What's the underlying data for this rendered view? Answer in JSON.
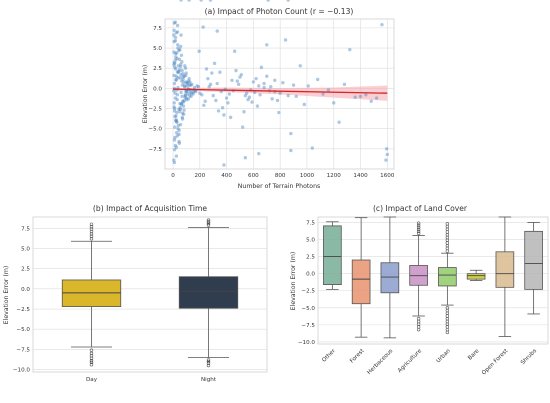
{
  "figure": {
    "scatter_panel": {
      "title": "(a) Impact of Photon Count (r = −0.13)",
      "xlabel": "Number of Terrain Photons",
      "ylabel": "Elevation Error (m)"
    },
    "time_panel": {
      "title": "(b) Impact of Acquisition Time",
      "ylabel": "Elevation Error (m)"
    },
    "landcover_panel": {
      "title": "(c) Impact of Land Cover",
      "ylabel": "Elevation Error (m)"
    }
  },
  "chart_data": [
    {
      "type": "scatter",
      "title": "(a) Impact of Photon Count (r = −0.13)",
      "xlabel": "Number of Terrain Photons",
      "ylabel": "Elevation Error (m)",
      "xlim": [
        -60,
        1650
      ],
      "ylim": [
        -10.0,
        8.6
      ],
      "xticks": [
        0,
        200,
        400,
        600,
        800,
        1000,
        1200,
        1400,
        1600
      ],
      "yticks": [
        -7.5,
        -5.0,
        -2.5,
        0.0,
        2.5,
        5.0,
        7.5
      ],
      "point_color": "#4a86c0",
      "points_x": [
        6,
        11,
        18,
        25,
        33,
        42,
        55,
        70,
        85,
        9,
        15,
        22,
        30,
        40,
        52,
        65,
        78,
        95,
        110,
        7,
        13,
        20,
        28,
        37,
        48,
        60,
        74,
        90,
        105,
        125,
        8,
        14,
        21,
        29,
        38,
        50,
        63,
        77,
        93,
        8,
        12,
        19,
        27,
        36,
        47,
        58,
        71,
        88,
        102,
        120,
        6,
        10,
        17,
        24,
        32,
        44,
        56,
        68,
        82,
        98,
        115,
        140,
        10,
        16,
        23,
        31,
        41,
        53,
        66,
        80,
        97,
        118,
        135,
        7,
        12,
        19,
        26,
        35,
        46,
        59,
        72,
        87,
        100,
        122,
        150,
        9,
        14,
        22,
        30,
        39,
        51,
        64,
        76,
        92,
        108,
        130,
        160,
        6,
        11,
        18,
        25,
        34,
        45,
        57,
        69,
        83,
        99,
        116,
        138,
        170,
        8,
        13,
        20,
        28,
        37,
        49,
        61,
        75,
        91,
        106,
        127,
        155,
        190,
        7,
        12,
        18,
        24,
        33,
        43,
        54,
        67,
        81,
        96,
        112,
        133,
        165,
        200,
        10,
        17,
        25,
        34,
        45,
        57,
        72,
        88,
        104,
        126,
        150,
        180,
        215,
        240,
        260,
        230,
        280,
        300,
        250,
        320,
        270,
        340,
        290,
        360,
        310,
        380,
        330,
        400,
        350,
        420,
        370,
        440,
        390,
        460,
        410,
        480,
        430,
        500,
        450,
        520,
        470,
        540,
        490,
        560,
        510,
        580,
        530,
        600,
        550,
        620,
        570,
        640,
        590,
        660,
        610,
        680,
        630,
        700,
        650,
        720,
        680,
        740,
        700,
        760,
        730,
        780,
        760,
        800,
        790,
        820,
        840,
        860,
        880,
        900,
        920,
        950,
        980,
        1010,
        1040,
        1080,
        1120,
        1160,
        1200,
        1240,
        1280,
        1320,
        1360,
        1400,
        1440,
        1480,
        1520,
        1560,
        1590,
        1600,
        1595,
        225,
        60,
        195,
        330,
        380,
        540,
        640,
        880,
        860,
        710,
        60,
        120,
        210,
        280
      ],
      "points_y": [
        -0.3,
        0.6,
        -1.2,
        1.5,
        -0.8,
        2.1,
        -2.6,
        0.4,
        -1.5,
        3.2,
        -3.5,
        1.1,
        -0.2,
        2.8,
        -1.9,
        0.9,
        -2.2,
        1.6,
        -0.7,
        4.5,
        -4.8,
        2.4,
        -3.0,
        0.1,
        3.6,
        -0.5,
        1.8,
        -1.1,
        0.7,
        -0.9,
        5.8,
        -6.1,
        3.9,
        -4.2,
        1.3,
        -2.9,
        4.1,
        -1.7,
        2.5,
        7.2,
        -7.6,
        6.3,
        -5.5,
        5.0,
        -6.8,
        3.0,
        -3.8,
        0.3,
        -0.4,
        1.2,
        -8.9,
        8.1,
        -7.1,
        6.9,
        -5.9,
        4.7,
        -4.5,
        2.2,
        -2.7,
        1.9,
        -1.3,
        0.5,
        0.0,
        -0.6,
        1.0,
        -1.4,
        2.0,
        -2.4,
        3.3,
        -3.2,
        0.8,
        -0.1,
        -1.0,
        2.9,
        -2.8,
        4.3,
        -4.1,
        5.4,
        -5.2,
        1.7,
        -1.6,
        0.2,
        -0.3,
        0.4,
        -0.7,
        -1.8,
        2.6,
        -3.4,
        3.7,
        -4.6,
        4.8,
        -2.0,
        1.4,
        -0.9,
        0.6,
        -0.2,
        0.1,
        6.6,
        -6.4,
        5.9,
        -7.3,
        7.0,
        -5.7,
        2.7,
        -3.6,
        1.5,
        -1.2,
        0.9,
        -0.6,
        -0.4,
        -2.3,
        3.1,
        -4.0,
        4.4,
        -5.0,
        2.3,
        -1.9,
        1.1,
        -0.8,
        0.3,
        -0.5,
        -0.2,
        0.2,
        1.6,
        -2.5,
        3.5,
        -3.9,
        2.0,
        -2.6,
        1.3,
        -1.0,
        0.7,
        -0.4,
        -0.1,
        0.4,
        -0.3,
        -0.6,
        -9.2,
        8.2,
        -8.4,
        7.8,
        -6.6,
        5.2,
        -3.1,
        2.8,
        -1.4,
        0.8,
        -0.5,
        0.3,
        -0.8,
        -1.6,
        1.2,
        -2.1,
        0.5,
        -0.9,
        2.4,
        -1.5,
        0.2,
        -2.8,
        1.9,
        -0.4,
        3.1,
        -3.3,
        0.6,
        -1.2,
        2.0,
        -0.7,
        -2.4,
        1.0,
        -0.1,
        4.6,
        -1.8,
        0.9,
        -3.6,
        1.4,
        -0.3,
        -4.8,
        2.2,
        -0.9,
        0.5,
        -1.4,
        1.7,
        -0.2,
        -2.9,
        0.8,
        -0.6,
        1.2,
        -1.1,
        0.3,
        -1.7,
        2.6,
        -0.5,
        0.1,
        -2.2,
        1.5,
        -0.8,
        -0.3,
        0.6,
        -1.3,
        5.4,
        -0.4,
        0.2,
        -1.5,
        1.0,
        -0.6,
        -3.0,
        0.7,
        6.0,
        -0.9,
        -5.6,
        0.4,
        -1.0,
        2.8,
        -2.0,
        0.3,
        -7.4,
        1.1,
        -0.7,
        -0.2,
        -1.8,
        -4.2,
        0.5,
        4.8,
        -1.1,
        -1.0,
        -0.8,
        -1.6,
        -1.2,
        7.9,
        -8.9,
        -8.2,
        -7.5,
        7.6,
        6.6,
        4.6,
        7.1,
        -9.5,
        -8.6,
        -8.1,
        -7.7
      ],
      "trend_line": {
        "x": [
          0,
          1600
        ],
        "y": [
          -0.1,
          -0.6
        ],
        "color": "#d62728"
      },
      "confidence_band": {
        "x": [
          0,
          400,
          800,
          1200,
          1600
        ],
        "lower": [
          -0.25,
          -0.45,
          -0.75,
          -1.15,
          -1.55
        ],
        "upper": [
          0.05,
          0.1,
          0.05,
          0.1,
          0.35
        ],
        "color": "#f4a8b0"
      },
      "grid": true
    },
    {
      "type": "box",
      "title": "(b) Impact of Acquisition Time",
      "ylabel": "Elevation Error (m)",
      "categories": [
        "Day",
        "Night"
      ],
      "ylim": [
        -10.3,
        8.9
      ],
      "yticks": [
        -10.0,
        -7.5,
        -5.0,
        -2.5,
        0.0,
        2.5,
        5.0,
        7.5
      ],
      "boxes": [
        {
          "q1": -2.2,
          "median": -0.5,
          "q3": 1.1,
          "whisker_low": -7.2,
          "whisker_high": 5.9,
          "color": "#d9b62a",
          "outliers_low": [
            -7.6,
            -8.0,
            -8.3,
            -8.6,
            -8.9,
            -9.1,
            -9.4
          ],
          "outliers_high": [
            6.2,
            6.5,
            6.8,
            7.1,
            7.4,
            7.7,
            8.0
          ]
        },
        {
          "q1": -2.4,
          "median": -0.3,
          "q3": 1.5,
          "whisker_low": -8.5,
          "whisker_high": 7.6,
          "color": "#2f3d4f",
          "outliers_low": [
            -8.8,
            -9.0,
            -9.2,
            -9.5
          ],
          "outliers_high": [
            7.9,
            8.1,
            8.3,
            8.5
          ]
        }
      ],
      "grid": true
    },
    {
      "type": "box",
      "title": "(c) Impact of Land Cover",
      "ylabel": "Elevation Error (m)",
      "categories": [
        "Other",
        "Forest",
        "Herbaceous",
        "Agriculture",
        "Urban",
        "Bare",
        "Open Forest",
        "Shrubs"
      ],
      "ylim": [
        -10.3,
        8.3
      ],
      "yticks": [
        -10.0,
        -7.5,
        -5.0,
        -2.5,
        0.0,
        2.5,
        5.0,
        7.5
      ],
      "boxes": [
        {
          "q1": -1.6,
          "median": 2.5,
          "q3": 7.0,
          "whisker_low": -2.3,
          "whisker_high": 7.6,
          "color": "#75ad95",
          "outliers_low": [],
          "outliers_high": []
        },
        {
          "q1": -4.4,
          "median": -0.8,
          "q3": 2.0,
          "whisker_low": -9.3,
          "whisker_high": 8.2,
          "color": "#e8936e",
          "outliers_low": [],
          "outliers_high": []
        },
        {
          "q1": -2.8,
          "median": -0.5,
          "q3": 1.6,
          "whisker_low": -9.4,
          "whisker_high": 8.3,
          "color": "#8a9ccc",
          "outliers_low": [],
          "outliers_high": []
        },
        {
          "q1": -1.7,
          "median": -0.3,
          "q3": 1.2,
          "whisker_low": -6.2,
          "whisker_high": 5.6,
          "color": "#c991c6",
          "outliers_low": [
            -6.6,
            -7.0,
            -7.4,
            -7.8,
            -8.2
          ],
          "outliers_high": [
            5.9,
            6.2,
            6.5,
            6.8,
            7.1,
            7.4
          ]
        },
        {
          "q1": -1.8,
          "median": -0.2,
          "q3": 0.9,
          "whisker_low": -4.6,
          "whisker_high": 3.0,
          "color": "#8fca6a",
          "outliers_low": [
            -5.0,
            -5.4,
            -5.8,
            -6.2,
            -6.6,
            -7.0,
            -7.4,
            -7.8,
            -8.2,
            -8.6
          ],
          "outliers_high": [
            3.3,
            3.7,
            4.1,
            4.5,
            4.9,
            5.3,
            5.7,
            6.1,
            6.5,
            6.9,
            7.3
          ]
        },
        {
          "q1": -0.8,
          "median": -0.3,
          "q3": 0.0,
          "whisker_low": -1.0,
          "whisker_high": 0.5,
          "color": "#c8c92e",
          "outliers_low": [],
          "outliers_high": []
        },
        {
          "q1": -2.0,
          "median": 0.0,
          "q3": 3.2,
          "whisker_low": -9.2,
          "whisker_high": 8.3,
          "color": "#d9bb8e",
          "outliers_low": [],
          "outliers_high": []
        },
        {
          "q1": -2.3,
          "median": 1.5,
          "q3": 6.2,
          "whisker_low": -5.9,
          "whisker_high": 7.5,
          "color": "#b5b5b5",
          "outliers_low": [],
          "outliers_high": []
        }
      ],
      "grid": true
    }
  ]
}
